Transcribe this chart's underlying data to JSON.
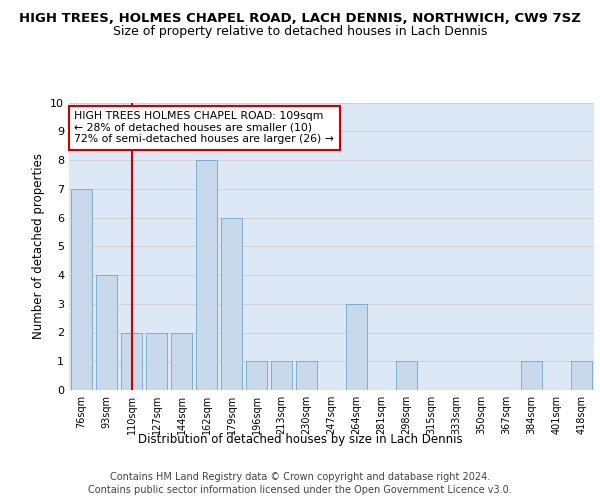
{
  "title": "HIGH TREES, HOLMES CHAPEL ROAD, LACH DENNIS, NORTHWICH, CW9 7SZ",
  "subtitle": "Size of property relative to detached houses in Lach Dennis",
  "xlabel": "Distribution of detached houses by size in Lach Dennis",
  "ylabel": "Number of detached properties",
  "categories": [
    "76sqm",
    "93sqm",
    "110sqm",
    "127sqm",
    "144sqm",
    "162sqm",
    "179sqm",
    "196sqm",
    "213sqm",
    "230sqm",
    "247sqm",
    "264sqm",
    "281sqm",
    "298sqm",
    "315sqm",
    "333sqm",
    "350sqm",
    "367sqm",
    "384sqm",
    "401sqm",
    "418sqm"
  ],
  "values": [
    7,
    4,
    2,
    2,
    2,
    8,
    6,
    1,
    1,
    1,
    0,
    3,
    0,
    1,
    0,
    0,
    0,
    0,
    1,
    0,
    1
  ],
  "bar_color": "#c9d9ec",
  "bar_edgecolor": "#7aaed0",
  "highlight_index": 2,
  "highlight_line_color": "#cc0000",
  "ylim": [
    0,
    10
  ],
  "yticks": [
    0,
    1,
    2,
    3,
    4,
    5,
    6,
    7,
    8,
    9,
    10
  ],
  "grid_color": "#cccccc",
  "bg_color": "#dce8f5",
  "annotation_text": "HIGH TREES HOLMES CHAPEL ROAD: 109sqm\n← 28% of detached houses are smaller (10)\n72% of semi-detached houses are larger (26) →",
  "footer1": "Contains HM Land Registry data © Crown copyright and database right 2024.",
  "footer2": "Contains public sector information licensed under the Open Government Licence v3.0."
}
